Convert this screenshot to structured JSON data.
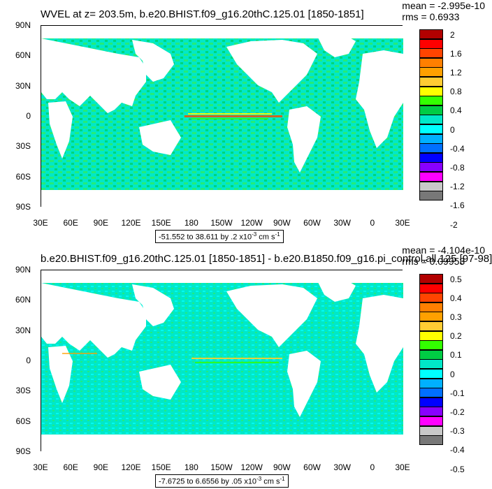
{
  "colorbar_colors": [
    "#b20000",
    "#ff0000",
    "#ff4400",
    "#ff7f00",
    "#ffa000",
    "#ffcc33",
    "#ffff00",
    "#33ff00",
    "#00cc44",
    "#00e8c8",
    "#00ffff",
    "#00b0ff",
    "#0070ff",
    "#0000ff",
    "#8800ff",
    "#ff00ff",
    "#c8c8c8",
    "#787878"
  ],
  "panels": [
    {
      "title": "WVEL at z= 203.5m, b.e20.BHIST.f09_g16.20thC.125.01 [1850-1851]",
      "mean": "mean = -2.995e-10",
      "rms": "rms = 0.6933",
      "y_labels": [
        "90N",
        "60N",
        "30N",
        "0",
        "30S",
        "60S",
        "90S"
      ],
      "x_labels": [
        "30E",
        "60E",
        "90E",
        "120E",
        "150E",
        "180",
        "150W",
        "120W",
        "90W",
        "60W",
        "30W",
        "0",
        "30E"
      ],
      "range_text": "-51.552 to 38.611 by .2 x10",
      "range_exp": "-3",
      "range_unit": " cm s",
      "range_unit_exp": "-1",
      "colorbar_labels": [
        "2",
        "1.6",
        "1.2",
        "0.8",
        "0.4",
        "0",
        "-0.4",
        "-0.8",
        "-1.2",
        "-1.6",
        "-2"
      ]
    },
    {
      "title": "b.e20.BHIST.f09_g16.20thC.125.01 [1850-1851] - b.e20.B1850.f09_g16.pi_control.all.125 [97-98]",
      "mean": "mean = -4.104e-10",
      "rms": "rms = 0.09953",
      "y_labels": [
        "90N",
        "60N",
        "30N",
        "0",
        "30S",
        "60S",
        "90S"
      ],
      "x_labels": [
        "30E",
        "60E",
        "90E",
        "120E",
        "150E",
        "180",
        "150W",
        "120W",
        "90W",
        "60W",
        "30W",
        "0",
        "30E"
      ],
      "range_text": "-7.6725 to 6.6556 by .05 x10",
      "range_exp": "-3",
      "range_unit": " cm s",
      "range_unit_exp": "-1",
      "colorbar_labels": [
        "0.5",
        "0.4",
        "0.3",
        "0.2",
        "0.1",
        "0",
        "-0.1",
        "-0.2",
        "-0.3",
        "-0.4",
        "-0.5"
      ]
    }
  ]
}
